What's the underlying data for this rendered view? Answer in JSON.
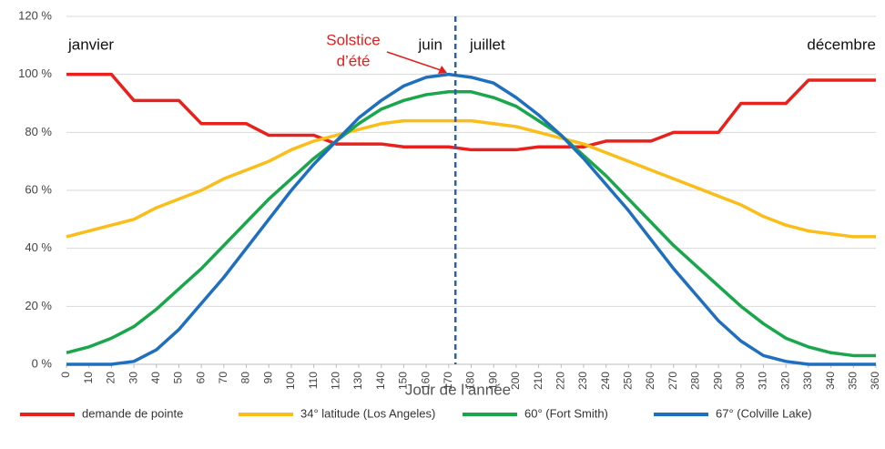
{
  "chart_data": {
    "type": "line",
    "x_label": "Jour de l’année",
    "x": [
      0,
      10,
      20,
      30,
      40,
      50,
      60,
      70,
      80,
      90,
      100,
      110,
      120,
      130,
      140,
      150,
      160,
      170,
      180,
      190,
      200,
      210,
      220,
      230,
      240,
      250,
      260,
      270,
      280,
      290,
      300,
      310,
      320,
      330,
      340,
      350,
      360
    ],
    "series": [
      {
        "name": "demande de pointe",
        "color": "#e8211d",
        "values": [
          100,
          100,
          100,
          91,
          91,
          91,
          83,
          83,
          83,
          79,
          79,
          79,
          76,
          76,
          76,
          75,
          75,
          75,
          74,
          74,
          74,
          75,
          75,
          75,
          77,
          77,
          77,
          80,
          80,
          80,
          90,
          90,
          90,
          98,
          98,
          98,
          98
        ]
      },
      {
        "name": "34° latitude (Los Angeles)",
        "color": "#fbbd1a",
        "values": [
          44,
          46,
          48,
          50,
          54,
          57,
          60,
          64,
          67,
          70,
          74,
          77,
          79,
          81,
          83,
          84,
          84,
          84,
          84,
          83,
          82,
          80,
          78,
          76,
          73,
          70,
          67,
          64,
          61,
          58,
          55,
          51,
          48,
          46,
          45,
          44,
          44
        ]
      },
      {
        "name": "60° (Fort Smith)",
        "color": "#1aa64b",
        "values": [
          4,
          6,
          9,
          13,
          19,
          26,
          33,
          41,
          49,
          57,
          64,
          71,
          77,
          83,
          88,
          91,
          93,
          94,
          94,
          92,
          89,
          84,
          79,
          72,
          65,
          57,
          49,
          41,
          34,
          27,
          20,
          14,
          9,
          6,
          4,
          3,
          3
        ]
      },
      {
        "name": "67° (Colville Lake)",
        "color": "#1f6fbf",
        "values": [
          0,
          0,
          0,
          1,
          5,
          12,
          21,
          30,
          40,
          50,
          60,
          69,
          77,
          85,
          91,
          96,
          99,
          100,
          99,
          97,
          92,
          86,
          79,
          71,
          62,
          53,
          43,
          33,
          24,
          15,
          8,
          3,
          1,
          0,
          0,
          0,
          0
        ]
      }
    ],
    "xlim": [
      0,
      360
    ],
    "xticks": [
      0,
      10,
      20,
      30,
      40,
      50,
      60,
      70,
      80,
      90,
      100,
      110,
      120,
      130,
      140,
      150,
      160,
      170,
      180,
      190,
      200,
      210,
      220,
      230,
      240,
      250,
      260,
      270,
      280,
      290,
      300,
      310,
      320,
      330,
      340,
      350,
      360
    ],
    "ylim": [
      0,
      120
    ],
    "yticks": [
      {
        "value": 0,
        "label": "0 %"
      },
      {
        "value": 20,
        "label": "20 %"
      },
      {
        "value": 40,
        "label": "40 %"
      },
      {
        "value": 60,
        "label": "60 %"
      },
      {
        "value": 80,
        "label": "80 %"
      },
      {
        "value": 100,
        "label": "100 %"
      },
      {
        "value": 120,
        "label": "120 %"
      }
    ],
    "grid": true,
    "vline_x": 173,
    "vline_color": "#2f5fa8",
    "month_labels": [
      "janvier",
      "juin",
      "juillet",
      "décembre"
    ],
    "solstice_label": [
      "Solstice",
      "d’été"
    ],
    "solstice_color": "#e0201e",
    "legend": "bottom"
  }
}
